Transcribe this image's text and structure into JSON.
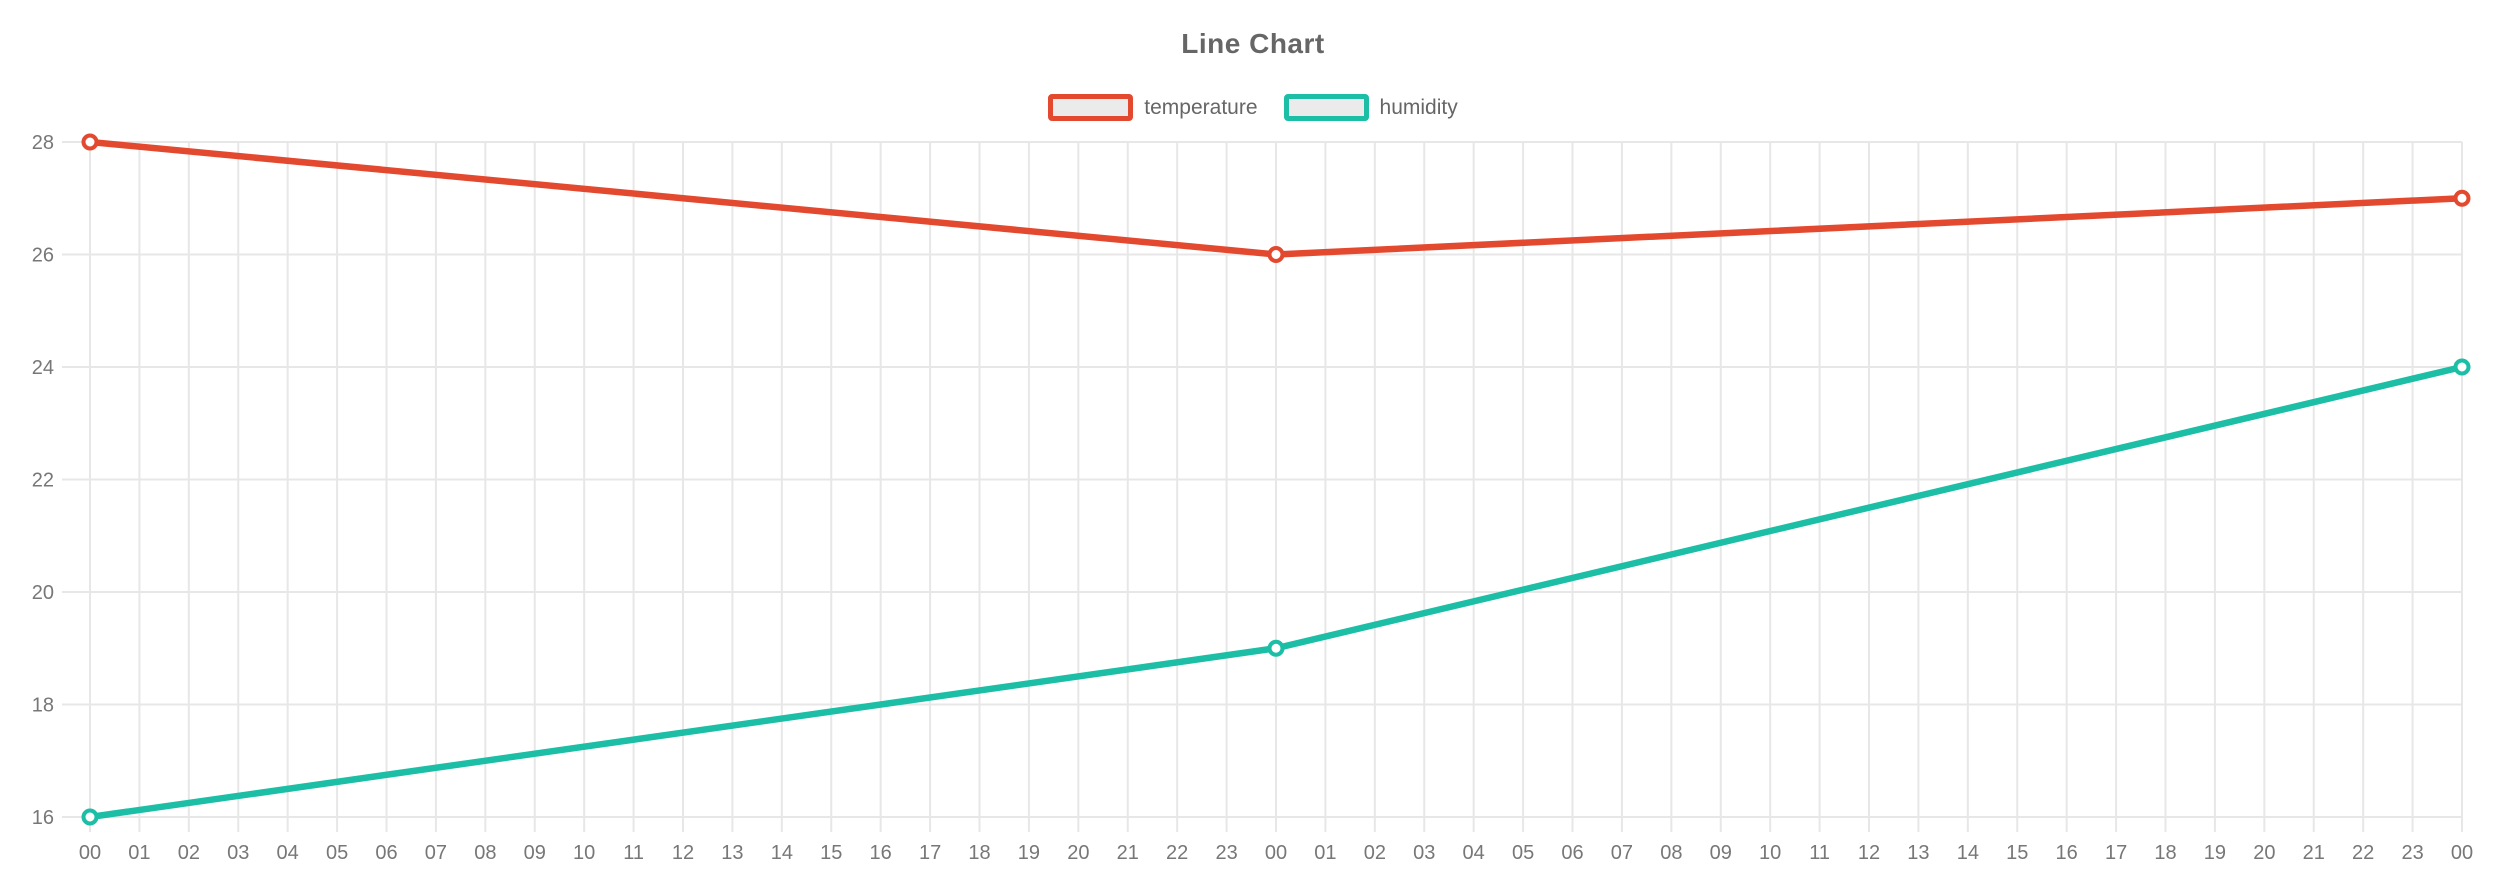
{
  "chart_data": {
    "type": "line",
    "title": "Line Chart",
    "xlabel": "",
    "ylabel": "",
    "x_categories": [
      "00",
      "01",
      "02",
      "03",
      "04",
      "05",
      "06",
      "07",
      "08",
      "09",
      "10",
      "11",
      "12",
      "13",
      "14",
      "15",
      "16",
      "17",
      "18",
      "19",
      "20",
      "21",
      "22",
      "23",
      "00",
      "01",
      "02",
      "03",
      "04",
      "05",
      "06",
      "07",
      "08",
      "09",
      "10",
      "11",
      "12",
      "13",
      "14",
      "15",
      "16",
      "17",
      "18",
      "19",
      "20",
      "21",
      "22",
      "23",
      "00"
    ],
    "series": [
      {
        "name": "temperature",
        "color": "#e3492f",
        "x_indices": [
          0,
          24,
          48
        ],
        "values": [
          28,
          26,
          27
        ]
      },
      {
        "name": "humidity",
        "color": "#1cbea5",
        "x_indices": [
          0,
          24,
          48
        ],
        "values": [
          16,
          19,
          24
        ]
      }
    ],
    "y_ticks": [
      16,
      18,
      20,
      22,
      24,
      26,
      28
    ],
    "ylim": [
      16,
      28
    ],
    "grid": true,
    "legend_position": "top",
    "marker": "hollow-circle",
    "colors": {
      "grid": "#e7e7e7",
      "tick_text": "#777777",
      "title_text": "#666666",
      "legend_text": "#666666",
      "legend_swatch_fill": "#ebebeb",
      "marker_fill": "#ffffff",
      "background": "#ffffff"
    }
  }
}
